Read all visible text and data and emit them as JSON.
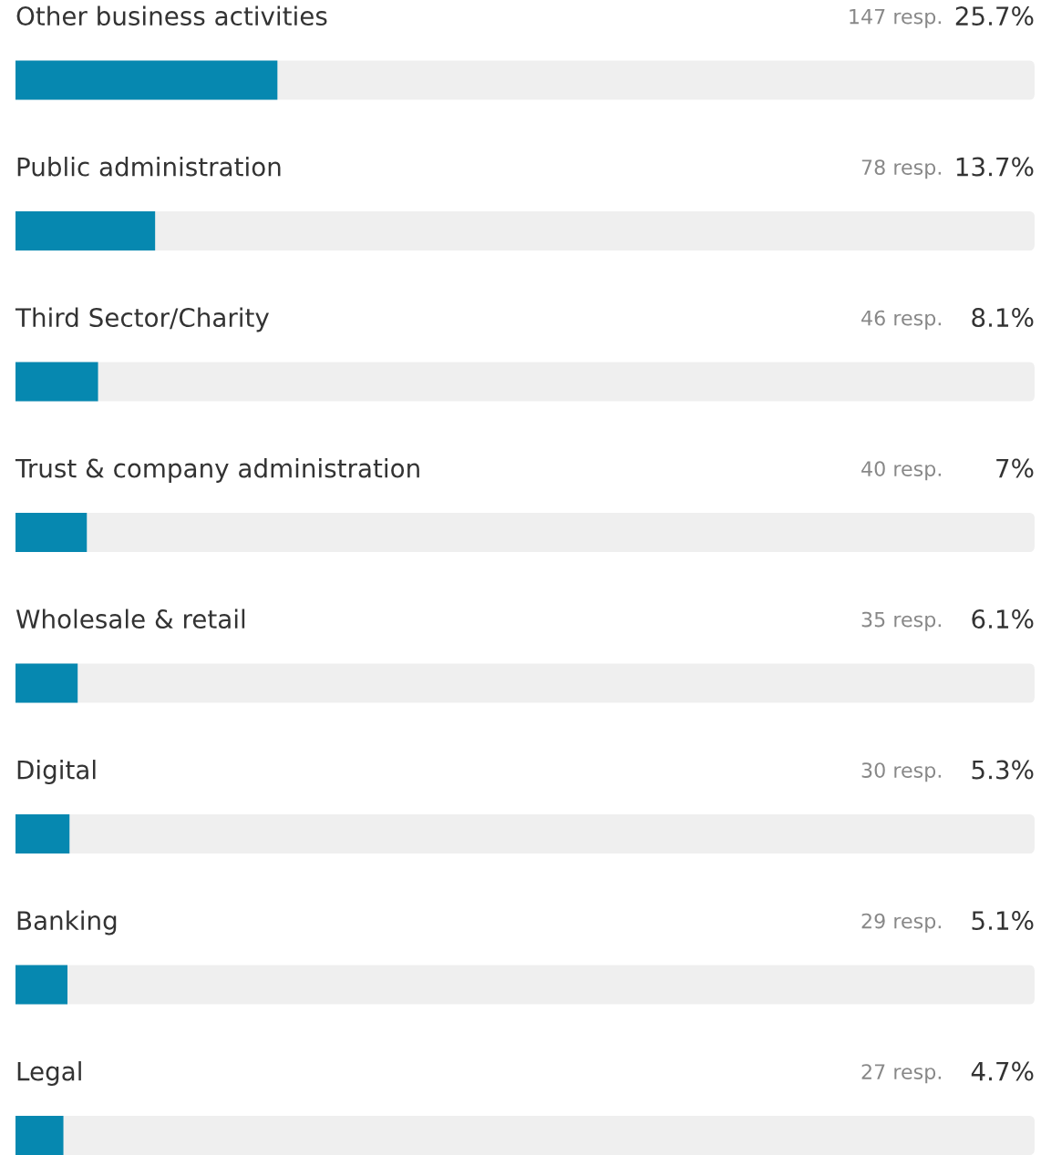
{
  "chart_data": {
    "type": "bar",
    "orientation": "horizontal",
    "categories": [
      "Other business activities",
      "Public administration",
      "Third Sector/Charity",
      "Trust & company administration",
      "Wholesale & retail",
      "Digital",
      "Banking",
      "Legal"
    ],
    "values": [
      25.7,
      13.7,
      8.1,
      7,
      6.1,
      5.3,
      5.1,
      4.7
    ],
    "value_labels": [
      "25.7%",
      "13.7%",
      "8.1%",
      "7%",
      "6.1%",
      "5.3%",
      "5.1%",
      "4.7%"
    ],
    "color": "#0688b0",
    "xlim": [
      0,
      100
    ],
    "annotations": [
      "147 resp.",
      "78 resp.",
      "46 resp.",
      "40 resp.",
      "35 resp.",
      "30 resp.",
      "29 resp.",
      "27 resp."
    ]
  }
}
